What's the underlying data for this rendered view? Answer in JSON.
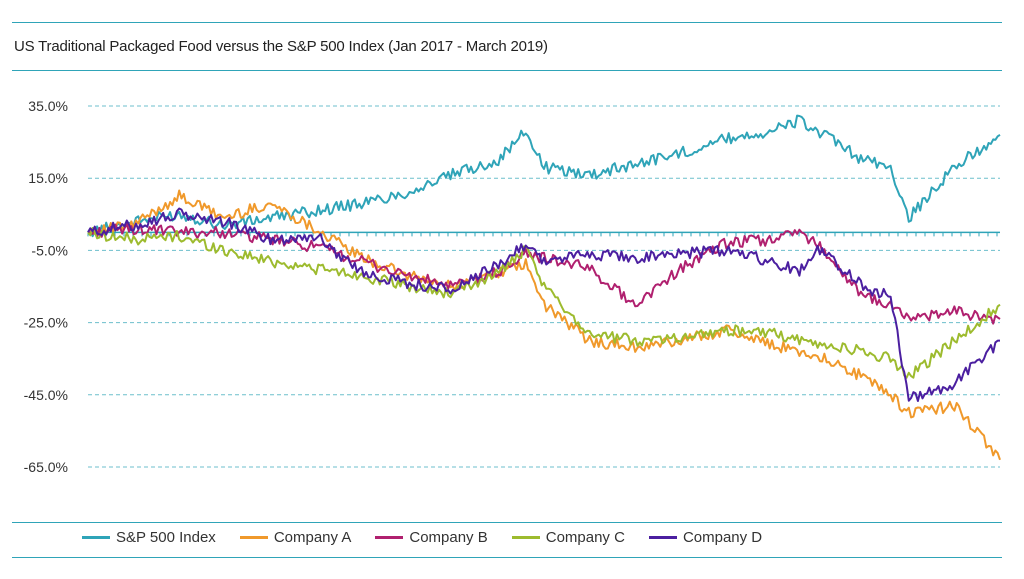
{
  "chart_data": {
    "type": "line",
    "title": "US Traditional Packaged Food versus the S&P 500 Index (Jan 2017 -  March 2019)",
    "x_range": [
      "Jan 2017",
      "March 2019"
    ],
    "ylim": [
      -65,
      35
    ],
    "yticks": [
      35,
      15,
      -5,
      -25,
      -45,
      -65
    ],
    "ytick_labels": [
      "35.0%",
      "15.0%",
      "-5.0%",
      "-25.0%",
      "-45.0%",
      "-65.0%"
    ],
    "grid": true,
    "legend_position": "bottom",
    "x": [
      0,
      0.05,
      0.1,
      0.15,
      0.2,
      0.25,
      0.3,
      0.35,
      0.4,
      0.45,
      0.48,
      0.5,
      0.55,
      0.6,
      0.65,
      0.7,
      0.75,
      0.78,
      0.8,
      0.85,
      0.88,
      0.9,
      0.95,
      1.0
    ],
    "series": [
      {
        "name": "S&P 500 Index",
        "color": "#2fa4b8",
        "values": [
          0,
          3,
          5,
          2,
          4,
          6,
          8,
          11,
          16,
          20,
          28,
          18,
          16,
          19,
          22,
          26,
          28,
          31,
          28,
          20,
          18,
          4,
          18,
          27
        ]
      },
      {
        "name": "Company A",
        "color": "#f0992b",
        "values": [
          0,
          2,
          10,
          4,
          8,
          1,
          -7,
          -12,
          -15,
          -11,
          -9,
          -20,
          -30,
          -32,
          -30,
          -27,
          -31,
          -33,
          -34,
          -40,
          -45,
          -50,
          -48,
          -63
        ]
      },
      {
        "name": "Company B",
        "color": "#b0206f",
        "values": [
          0,
          1,
          0,
          0,
          -2,
          -4,
          -8,
          -12,
          -15,
          -11,
          -6,
          -7,
          -10,
          -20,
          -10,
          -3,
          -2,
          0,
          -3,
          -18,
          -20,
          -24,
          -22,
          -24
        ]
      },
      {
        "name": "Company C",
        "color": "#9dbb2e",
        "values": [
          0,
          -2,
          -1,
          -5,
          -8,
          -10,
          -12,
          -15,
          -17,
          -11,
          -5,
          -15,
          -28,
          -30,
          -29,
          -27,
          -28,
          -30,
          -31,
          -33,
          -35,
          -40,
          -30,
          -20
        ]
      },
      {
        "name": "Company D",
        "color": "#4b1fa0",
        "values": [
          0,
          2,
          5,
          3,
          -2,
          -1,
          -11,
          -14,
          -16,
          -9,
          -3,
          -8,
          -6,
          -7,
          -6,
          -5,
          -8,
          -11,
          -4,
          -15,
          -18,
          -46,
          -42,
          -30
        ]
      }
    ]
  }
}
